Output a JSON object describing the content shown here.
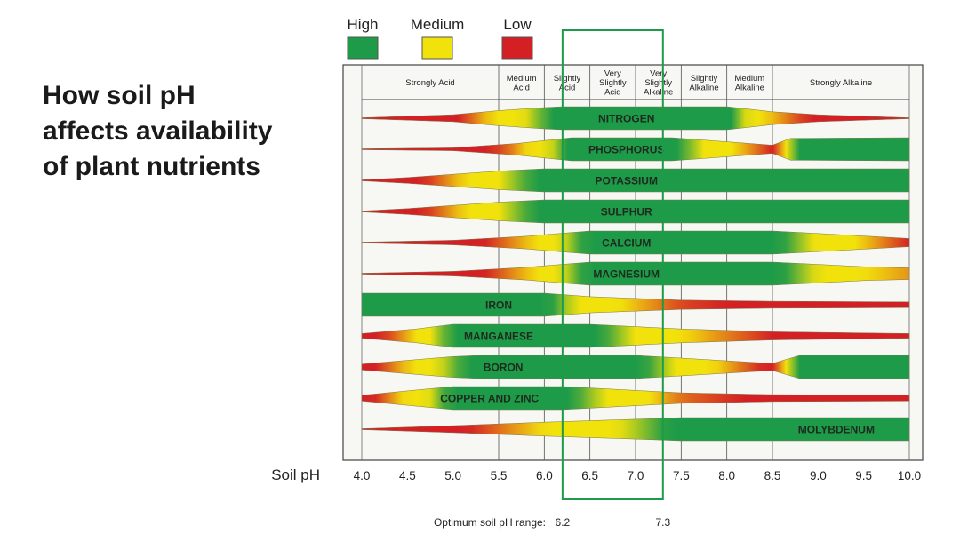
{
  "title_lines": [
    "How soil pH",
    "affects availability",
    "of plant nutrients"
  ],
  "chart_data": {
    "type": "band-chart",
    "title": "How soil pH affects availability of plant nutrients",
    "xlabel": "Soil pH",
    "xlim": [
      4.0,
      10.0
    ],
    "x_ticks": [
      "4.0",
      "4.5",
      "5.0",
      "5.5",
      "6.0",
      "6.5",
      "7.0",
      "7.5",
      "8.0",
      "8.5",
      "9.0",
      "9.5",
      "10.0"
    ],
    "legend": [
      {
        "label": "High",
        "color": "#1e9b48"
      },
      {
        "label": "Medium",
        "color": "#f2e20c"
      },
      {
        "label": "Low",
        "color": "#d42025"
      }
    ],
    "zones": [
      {
        "lines": [
          "Strongly Acid"
        ],
        "from": 4.0,
        "to": 5.5
      },
      {
        "lines": [
          "Medium",
          "Acid"
        ],
        "from": 5.5,
        "to": 6.0
      },
      {
        "lines": [
          "Slightly",
          "Acid"
        ],
        "from": 6.0,
        "to": 6.5
      },
      {
        "lines": [
          "Very",
          "Slightly",
          "Acid"
        ],
        "from": 6.5,
        "to": 7.0
      },
      {
        "lines": [
          "Very",
          "Slightly",
          "Alkaline"
        ],
        "from": 7.0,
        "to": 7.5
      },
      {
        "lines": [
          "Slightly",
          "Alkaline"
        ],
        "from": 7.5,
        "to": 8.0
      },
      {
        "lines": [
          "Medium",
          "Alkaline"
        ],
        "from": 8.0,
        "to": 8.5
      },
      {
        "lines": [
          "Strongly Alkaline"
        ],
        "from": 8.5,
        "to": 10.0
      }
    ],
    "optimum": {
      "label": "Optimum soil pH range:",
      "from": 6.2,
      "to": 7.3,
      "from_label": "6.2",
      "to_label": "7.3"
    },
    "nutrients": [
      {
        "name": "NITROGEN",
        "label_ph": 6.9,
        "profile": [
          [
            4.0,
            0.04
          ],
          [
            5.0,
            0.3
          ],
          [
            5.5,
            0.65
          ],
          [
            6.0,
            0.92
          ],
          [
            6.2,
            1
          ],
          [
            8.0,
            1
          ],
          [
            8.5,
            0.55
          ],
          [
            9.0,
            0.3
          ],
          [
            10.0,
            0.04
          ]
        ]
      },
      {
        "name": "PHOSPHORUS",
        "label_ph": 6.9,
        "profile": [
          [
            4.0,
            0.04
          ],
          [
            5.0,
            0.12
          ],
          [
            5.7,
            0.5
          ],
          [
            6.3,
            1
          ],
          [
            7.4,
            1
          ],
          [
            8.5,
            0.35
          ],
          [
            8.7,
            0.95
          ],
          [
            10.0,
            1
          ]
        ]
      },
      {
        "name": "POTASSIUM",
        "label_ph": 6.9,
        "profile": [
          [
            4.0,
            0.04
          ],
          [
            4.5,
            0.25
          ],
          [
            5.5,
            0.8
          ],
          [
            6.0,
            1
          ],
          [
            10.0,
            1
          ]
        ]
      },
      {
        "name": "SULPHUR",
        "label_ph": 6.9,
        "profile": [
          [
            4.0,
            0.04
          ],
          [
            4.5,
            0.25
          ],
          [
            5.5,
            0.8
          ],
          [
            6.0,
            1
          ],
          [
            10.0,
            1
          ]
        ]
      },
      {
        "name": "CALCIUM",
        "label_ph": 6.9,
        "profile": [
          [
            4.0,
            0.04
          ],
          [
            5.0,
            0.2
          ],
          [
            5.8,
            0.55
          ],
          [
            6.5,
            1
          ],
          [
            8.5,
            1
          ],
          [
            10.0,
            0.35
          ]
        ]
      },
      {
        "name": "MAGNESIUM",
        "label_ph": 6.9,
        "profile": [
          [
            4.0,
            0.04
          ],
          [
            5.0,
            0.2
          ],
          [
            5.8,
            0.55
          ],
          [
            6.5,
            1
          ],
          [
            8.5,
            1
          ],
          [
            9.5,
            0.6
          ],
          [
            10.0,
            0.5
          ]
        ]
      },
      {
        "name": "IRON",
        "label_ph": 5.5,
        "profile": [
          [
            4.0,
            1
          ],
          [
            6.0,
            1
          ],
          [
            6.5,
            0.7
          ],
          [
            7.5,
            0.4
          ],
          [
            8.5,
            0.3
          ],
          [
            10.0,
            0.25
          ]
        ]
      },
      {
        "name": "MANGANESE",
        "label_ph": 5.5,
        "profile": [
          [
            4.0,
            0.2
          ],
          [
            4.6,
            0.6
          ],
          [
            5.0,
            1
          ],
          [
            6.5,
            1
          ],
          [
            7.5,
            0.6
          ],
          [
            8.5,
            0.35
          ],
          [
            10.0,
            0.2
          ]
        ]
      },
      {
        "name": "BORON",
        "label_ph": 5.55,
        "profile": [
          [
            4.0,
            0.25
          ],
          [
            5.0,
            0.9
          ],
          [
            5.3,
            1
          ],
          [
            7.0,
            1
          ],
          [
            8.5,
            0.3
          ],
          [
            8.8,
            1
          ],
          [
            10.0,
            1
          ]
        ]
      },
      {
        "name": "COPPER AND ZINC",
        "label_ph": 5.4,
        "profile": [
          [
            4.0,
            0.25
          ],
          [
            5.0,
            1
          ],
          [
            6.2,
            1
          ],
          [
            7.5,
            0.45
          ],
          [
            8.5,
            0.3
          ],
          [
            10.0,
            0.25
          ]
        ]
      },
      {
        "name": "MOLYBDENUM",
        "label_ph": 9.2,
        "profile": [
          [
            4.0,
            0.04
          ],
          [
            5.0,
            0.3
          ],
          [
            6.0,
            0.6
          ],
          [
            7.0,
            0.85
          ],
          [
            7.5,
            1
          ],
          [
            10.0,
            1
          ]
        ]
      }
    ]
  }
}
